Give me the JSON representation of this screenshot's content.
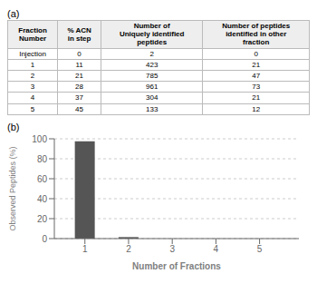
{
  "chart_data": [
    {
      "type": "table",
      "title": "(a)",
      "columns": [
        "Fraction\nNumber",
        "% ACN\nin step",
        "Number of\nUniquely identified\npeptides",
        "Number of peptides\nidentified in other\nfraction"
      ],
      "rows": [
        [
          "Injection",
          "0",
          "2",
          "0"
        ],
        [
          "1",
          "11",
          "423",
          "21"
        ],
        [
          "2",
          "21",
          "785",
          "47"
        ],
        [
          "3",
          "28",
          "961",
          "73"
        ],
        [
          "4",
          "37",
          "304",
          "21"
        ],
        [
          "5",
          "45",
          "133",
          "12"
        ]
      ]
    },
    {
      "type": "bar",
      "title": "(b)",
      "x": [
        1,
        2,
        3,
        4,
        5
      ],
      "values": [
        97.5,
        1.5,
        0.0,
        0.0,
        0.0
      ],
      "color": "#555555",
      "xlabel": "Number of Fractions",
      "ylabel": "Observed Peptides (%)",
      "xlim": [
        0.3,
        5.9
      ],
      "xticks": [
        1,
        2,
        3,
        4,
        5
      ],
      "ylim": [
        0,
        100
      ],
      "yticks": [
        0,
        20,
        40,
        60,
        80,
        100
      ],
      "grid": true
    }
  ]
}
